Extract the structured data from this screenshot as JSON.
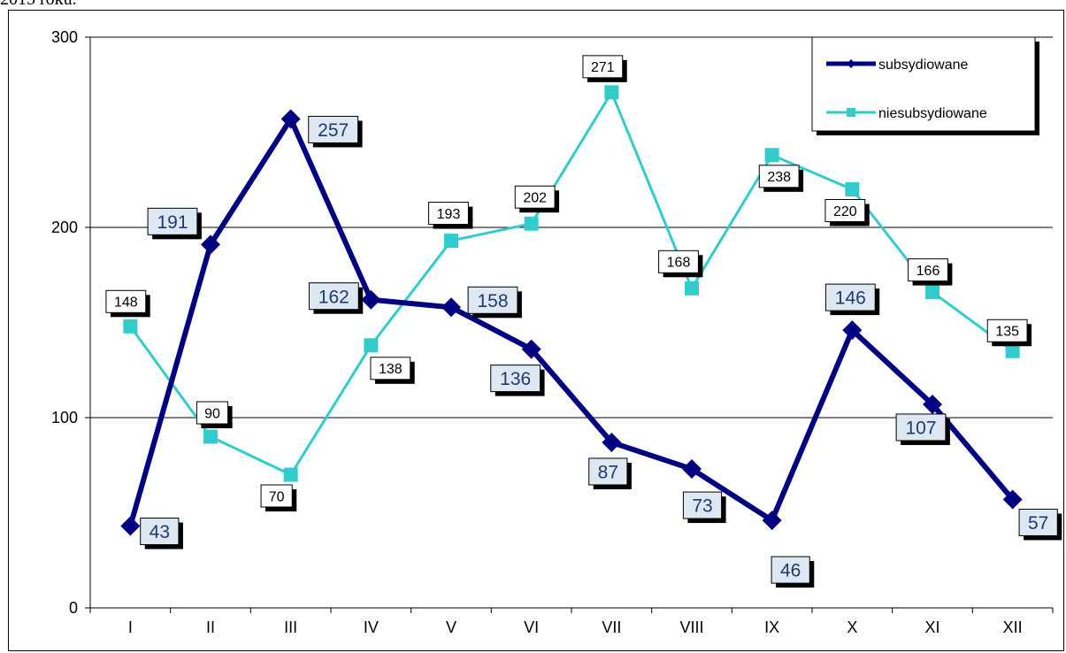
{
  "caption": "2015 roku.",
  "chart_data": {
    "type": "line",
    "categories": [
      "I",
      "II",
      "III",
      "IV",
      "V",
      "VI",
      "VII",
      "VIII",
      "IX",
      "X",
      "XI",
      "XII"
    ],
    "ylim": [
      0,
      300
    ],
    "yticks": [
      0,
      100,
      200,
      300
    ],
    "grid": true,
    "legend_position": "top-right",
    "series": [
      {
        "name": "subsydiowane",
        "color": "#000080",
        "marker": "diamond",
        "values": [
          43,
          191,
          257,
          162,
          158,
          136,
          87,
          73,
          46,
          146,
          107,
          57
        ]
      },
      {
        "name": "niesubsydiowane",
        "color": "#33cccc",
        "marker": "square",
        "values": [
          148,
          90,
          70,
          138,
          193,
          202,
          271,
          168,
          238,
          220,
          166,
          135
        ]
      }
    ]
  }
}
